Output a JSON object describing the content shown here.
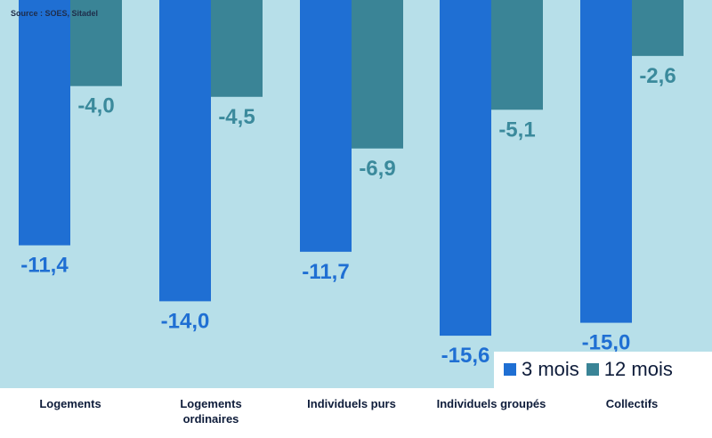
{
  "source": "Source : SOES, Sitadel",
  "colors": {
    "background": "#b7dfe9",
    "series_3m": "#1f6fd3",
    "series_12m": "#3a8496",
    "label_3m": "#1f6fd3",
    "label_12m": "#3b8a9c",
    "category_text": "#0e1c3a"
  },
  "chart_data": {
    "type": "bar",
    "categories": [
      "Logements",
      "Logements\nordinaires",
      "Individuels purs",
      "Individuels groupés",
      "Collectifs"
    ],
    "series": [
      {
        "name": "3 mois",
        "values": [
          -11.4,
          -14.0,
          -11.7,
          -15.6,
          -15.0
        ],
        "labels": [
          "-11,4",
          "-14,0",
          "-11,7",
          "-15,6",
          "-15,0"
        ]
      },
      {
        "name": "12 mois",
        "values": [
          -4.0,
          -4.5,
          -6.9,
          -5.1,
          -2.6
        ],
        "labels": [
          "-4,0",
          "-4,5",
          "-6,9",
          "-5,1",
          "-2,6"
        ]
      }
    ],
    "ylim": [
      -16.3,
      0
    ],
    "legend_position": "bottom-right"
  }
}
